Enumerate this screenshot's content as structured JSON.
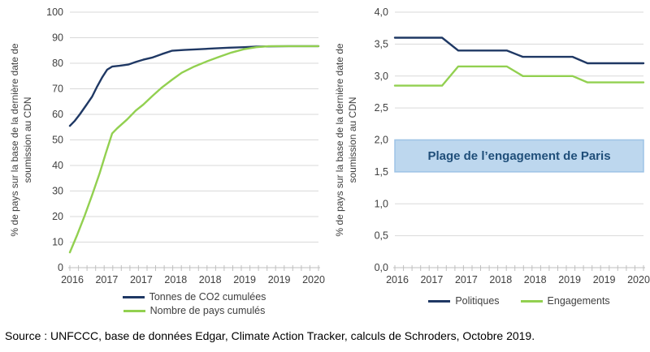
{
  "source_note": "Source : UNFCCC, base de données Edgar, Climate Action Tracker, calculs de Schroders, Octobre 2019.",
  "colors": {
    "navy": "#1F3864",
    "green": "#92D050",
    "gridline": "#D9D9D9",
    "axis": "#BFBFBF",
    "tick_text": "#404040",
    "band_fill": "#BDD7EE",
    "band_border": "#9DC3E6",
    "band_text": "#1F4E79",
    "source_text": "#000000",
    "background": "#FFFFFF"
  },
  "chart_data": [
    {
      "type": "line",
      "id": "left",
      "title": "",
      "xlabel": "",
      "ylabel": "% de pays sur la base de la dernière date de soumission au CDN",
      "ylabel_lines": [
        "% de pays sur la base de la dernière date de",
        "soumission au CDN"
      ],
      "ylim": [
        0,
        100
      ],
      "grid": true,
      "legend_position": "bottom-stacked",
      "yticks": [
        {
          "v": 0,
          "label": "0"
        },
        {
          "v": 10,
          "label": "10"
        },
        {
          "v": 20,
          "label": "20"
        },
        {
          "v": 30,
          "label": "30"
        },
        {
          "v": 40,
          "label": "40"
        },
        {
          "v": 50,
          "label": "50"
        },
        {
          "v": 60,
          "label": "60"
        },
        {
          "v": 70,
          "label": "70"
        },
        {
          "v": 80,
          "label": "80"
        },
        {
          "v": 90,
          "label": "90"
        },
        {
          "v": 100,
          "label": "100"
        }
      ],
      "xtick_labels": [
        "2016",
        "2017",
        "2017",
        "2018",
        "2018",
        "2019",
        "2019",
        "2020"
      ],
      "minor_tick_count": 30,
      "series": [
        {
          "name": "Tonnes de CO2 cumulées",
          "color_key": "navy",
          "points": [
            [
              0,
              55.5
            ],
            [
              0.02,
              57.5
            ],
            [
              0.04,
              60
            ],
            [
              0.065,
              63.5
            ],
            [
              0.09,
              67
            ],
            [
              0.11,
              71
            ],
            [
              0.13,
              74.5
            ],
            [
              0.15,
              77.5
            ],
            [
              0.17,
              78.7
            ],
            [
              0.2,
              79
            ],
            [
              0.235,
              79.5
            ],
            [
              0.265,
              80.5
            ],
            [
              0.295,
              81.4
            ],
            [
              0.33,
              82.2
            ],
            [
              0.37,
              83.6
            ],
            [
              0.41,
              84.9
            ],
            [
              0.46,
              85.2
            ],
            [
              0.52,
              85.5
            ],
            [
              0.58,
              85.8
            ],
            [
              0.64,
              86.1
            ],
            [
              0.7,
              86.3
            ],
            [
              0.75,
              86.5
            ],
            [
              0.8,
              86.6
            ],
            [
              0.88,
              86.7
            ],
            [
              1,
              86.7
            ]
          ]
        },
        {
          "name": "Nombre de pays cumulés",
          "color_key": "green",
          "points": [
            [
              0,
              6
            ],
            [
              0.03,
              13
            ],
            [
              0.06,
              20.5
            ],
            [
              0.09,
              28.5
            ],
            [
              0.12,
              37
            ],
            [
              0.145,
              45
            ],
            [
              0.17,
              52.5
            ],
            [
              0.19,
              54.5
            ],
            [
              0.23,
              58
            ],
            [
              0.265,
              61.5
            ],
            [
              0.295,
              63.8
            ],
            [
              0.33,
              67
            ],
            [
              0.37,
              70.5
            ],
            [
              0.41,
              73.5
            ],
            [
              0.45,
              76.3
            ],
            [
              0.5,
              78.7
            ],
            [
              0.55,
              80.7
            ],
            [
              0.6,
              82.5
            ],
            [
              0.65,
              84.2
            ],
            [
              0.7,
              85.5
            ],
            [
              0.75,
              86.3
            ],
            [
              0.8,
              86.7
            ],
            [
              0.88,
              86.7
            ],
            [
              1,
              86.7
            ]
          ]
        }
      ]
    },
    {
      "type": "line",
      "id": "right",
      "title": "",
      "xlabel": "",
      "ylabel": "% de pays sur la base de la dernière date de soumission au CDN",
      "ylabel_lines": [
        "% de pays sur la base de la dernière date de",
        "soumission au CDN"
      ],
      "ylim": [
        0,
        4
      ],
      "grid": true,
      "legend_position": "bottom-row",
      "yticks": [
        {
          "v": 0,
          "label": "0,0"
        },
        {
          "v": 0.5,
          "label": "0,5"
        },
        {
          "v": 1,
          "label": "1,0"
        },
        {
          "v": 1.5,
          "label": "1,5"
        },
        {
          "v": 2,
          "label": "2,0"
        },
        {
          "v": 2.5,
          "label": "2,5"
        },
        {
          "v": 3,
          "label": "3,0"
        },
        {
          "v": 3.5,
          "label": "3,5"
        },
        {
          "v": 4,
          "label": "4,0"
        }
      ],
      "xtick_labels": [
        "2016",
        "2017",
        "2017",
        "2018",
        "2018",
        "2019",
        "2019",
        "2020"
      ],
      "minor_tick_count": 30,
      "band": {
        "from": 1.5,
        "to": 2.0,
        "label": "Plage de l’engagement de Paris"
      },
      "series": [
        {
          "name": "Politiques",
          "color_key": "navy",
          "points": [
            [
              0,
              3.6
            ],
            [
              0.19,
              3.6
            ],
            [
              0.255,
              3.4
            ],
            [
              0.45,
              3.4
            ],
            [
              0.515,
              3.3
            ],
            [
              0.715,
              3.3
            ],
            [
              0.775,
              3.2
            ],
            [
              1,
              3.2
            ]
          ]
        },
        {
          "name": "Engagements",
          "color_key": "green",
          "points": [
            [
              0,
              2.85
            ],
            [
              0.19,
              2.85
            ],
            [
              0.255,
              3.15
            ],
            [
              0.45,
              3.15
            ],
            [
              0.515,
              3.0
            ],
            [
              0.715,
              3.0
            ],
            [
              0.775,
              2.9
            ],
            [
              1,
              2.9
            ]
          ]
        }
      ]
    }
  ]
}
